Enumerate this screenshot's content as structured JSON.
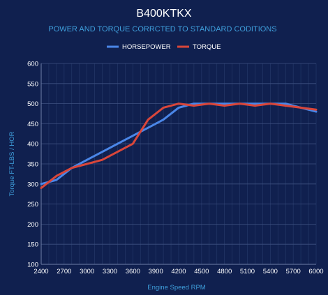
{
  "chart_data": {
    "type": "line",
    "title": "B400KTKX",
    "subtitle": "POWER AND TORQUE CORRCTED TO STANDARD CODITIONS",
    "xlabel": "Engine Speed RPM",
    "ylabel": "Torque FT-LBS / HOR",
    "xlim": [
      2400,
      6000
    ],
    "ylim": [
      100,
      600
    ],
    "x_ticks": [
      "2400",
      "2700",
      "3000",
      "3300",
      "3600",
      "3900",
      "4200",
      "4500",
      "4800",
      "5100",
      "5400",
      "5700",
      "6000"
    ],
    "y_ticks": [
      "100",
      "150",
      "200",
      "250",
      "300",
      "350",
      "400",
      "450",
      "500",
      "550",
      "600"
    ],
    "x": [
      2400,
      2600,
      2800,
      3000,
      3200,
      3400,
      3600,
      3800,
      4000,
      4200,
      4400,
      4600,
      4800,
      5000,
      5200,
      5400,
      5600,
      5800,
      6000
    ],
    "series": [
      {
        "name": "HORSEPOWER",
        "color": "#4a86e8",
        "values": [
          300,
          310,
          340,
          360,
          380,
          400,
          420,
          440,
          460,
          490,
          500,
          500,
          500,
          500,
          500,
          500,
          500,
          490,
          480
        ]
      },
      {
        "name": "TORQUE",
        "color": "#d9463a",
        "values": [
          290,
          320,
          340,
          350,
          360,
          380,
          400,
          460,
          490,
          500,
          495,
          500,
          495,
          500,
          495,
          500,
          495,
          490,
          485
        ]
      }
    ],
    "grid": true,
    "legend_position": "top-center"
  }
}
